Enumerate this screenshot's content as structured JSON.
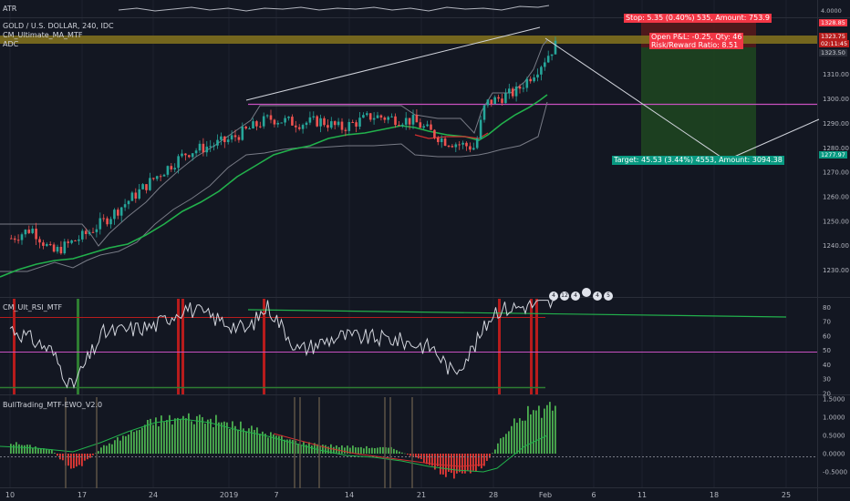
{
  "header": {
    "atr_label": "ATR",
    "symbol_title": "GOLD / U.S. DOLLAR, 240, IDC",
    "ma_label": "CM_Ultimate_MA_MTF",
    "adc_label": "ADC"
  },
  "rsi_panel": {
    "title": "CM_Ult_RSI_MTF"
  },
  "ewo_panel": {
    "title": "BullTrading_MTF-EWO_V2.0"
  },
  "position_tool": {
    "stop_text": "Stop: 5.35 (0.40%) 535, Amount: 753.9",
    "open_pl_text": "Open P&L: -0.25, Qty: 46",
    "risk_reward_text": "Risk/Reward Ratio: 8.51",
    "target_text": "Target: 45.53 (3.44%) 4553, Amount: 3094.38"
  },
  "price_labels": {
    "stop_price": "1328.85",
    "last_price": "1323.75",
    "countdown": "02:11:45",
    "entry_price": "1323.50",
    "target_price": "1277.97"
  },
  "atr_scale_label": "4.0000",
  "events": [
    "4",
    "12",
    "4",
    "",
    "4",
    "5"
  ],
  "colors": {
    "background": "#131722",
    "up_candle": "#26a69a",
    "down_candle": "#ef5350",
    "ma_green": "#22b14c",
    "channel_gray": "#787b86",
    "magenta_level": "#c850c0",
    "resistance_band": "#7f6f1e",
    "profit_zone": "#1e4620",
    "loss_zone": "#5b1a1a",
    "target_badge": "#089981",
    "stop_badge": "#f23645"
  },
  "chart_data": [
    {
      "type": "candlestick",
      "title": "GOLD / U.S. DOLLAR, 240, IDC",
      "x_tick_labels": [
        "10",
        "17",
        "24",
        "2019",
        "7",
        "14",
        "21",
        "28",
        "Feb",
        "6",
        "11",
        "18",
        "25"
      ],
      "y_ticks": [
        1230,
        1240,
        1250,
        1260,
        1270,
        1280,
        1290,
        1300,
        1310
      ],
      "ylim": [
        1222,
        1330
      ],
      "price_path_points": [
        {
          "date": "Dec 10",
          "price": 1243
        },
        {
          "date": "Dec 12",
          "price": 1247
        },
        {
          "date": "Dec 14",
          "price": 1237
        },
        {
          "date": "Dec 17",
          "price": 1244
        },
        {
          "date": "Dec 19",
          "price": 1250
        },
        {
          "date": "Dec 21",
          "price": 1257
        },
        {
          "date": "Dec 24",
          "price": 1268
        },
        {
          "date": "Dec 27",
          "price": 1278
        },
        {
          "date": "Dec 31",
          "price": 1283
        },
        {
          "date": "Jan 4",
          "price": 1292
        },
        {
          "date": "Jan 7",
          "price": 1290
        },
        {
          "date": "Jan 9",
          "price": 1291
        },
        {
          "date": "Jan 11",
          "price": 1288
        },
        {
          "date": "Jan 14",
          "price": 1293
        },
        {
          "date": "Jan 16",
          "price": 1292
        },
        {
          "date": "Jan 18",
          "price": 1291
        },
        {
          "date": "Jan 21",
          "price": 1283
        },
        {
          "date": "Jan 24",
          "price": 1280
        },
        {
          "date": "Jan 25",
          "price": 1298
        },
        {
          "date": "Jan 28",
          "price": 1303
        },
        {
          "date": "Jan 30",
          "price": 1312
        },
        {
          "date": "Feb 1",
          "price": 1323
        }
      ],
      "moving_average": [
        {
          "date": "Dec 10",
          "value": 1226
        },
        {
          "date": "Dec 17",
          "value": 1236
        },
        {
          "date": "Dec 24",
          "value": 1255
        },
        {
          "date": "Jan 2",
          "value": 1272
        },
        {
          "date": "Jan 9",
          "value": 1283
        },
        {
          "date": "Jan 16",
          "value": 1287
        },
        {
          "date": "Jan 21",
          "value": 1285
        },
        {
          "date": "Jan 25",
          "value": 1284
        },
        {
          "date": "Jan 28",
          "value": 1290
        },
        {
          "date": "Feb 1",
          "value": 1301
        }
      ],
      "horizontal_levels": {
        "magenta": 1298,
        "resistance_band": [
          1322.5,
          1325
        ]
      },
      "position": {
        "entry": 1323.5,
        "stop": 1328.85,
        "target": 1277.97
      }
    },
    {
      "type": "line",
      "title": "CM_Ult_RSI_MTF",
      "y_ticks": [
        20,
        30,
        40,
        50,
        60,
        70,
        80
      ],
      "ylim": [
        20,
        86
      ],
      "levels": {
        "overbought": 76,
        "mid": 50,
        "oversold": 24
      },
      "trendline": {
        "start": 82,
        "end": 78
      },
      "rsi_points": [
        {
          "date": "Dec 10",
          "value": 66
        },
        {
          "date": "Dec 14",
          "value": 50
        },
        {
          "date": "Dec 16",
          "value": 24
        },
        {
          "date": "Dec 19",
          "value": 62
        },
        {
          "date": "Dec 24",
          "value": 67
        },
        {
          "date": "Dec 27",
          "value": 80
        },
        {
          "date": "Jan 2",
          "value": 64
        },
        {
          "date": "Jan 4",
          "value": 81
        },
        {
          "date": "Jan 7",
          "value": 50
        },
        {
          "date": "Jan 11",
          "value": 60
        },
        {
          "date": "Jan 16",
          "value": 58
        },
        {
          "date": "Jan 20",
          "value": 52
        },
        {
          "date": "Jan 22",
          "value": 34
        },
        {
          "date": "Jan 24",
          "value": 52
        },
        {
          "date": "Jan 26",
          "value": 78
        },
        {
          "date": "Jan 30",
          "value": 82
        },
        {
          "date": "Feb 1",
          "value": 83
        }
      ]
    },
    {
      "type": "bar",
      "title": "BullTrading_MTF-EWO_V2.0",
      "y_ticks": [
        -0.5,
        0,
        0.5,
        1,
        1.5
      ],
      "ylim": [
        -0.9,
        1.55
      ],
      "ewo_points": [
        {
          "date": "Dec 10",
          "value": 0.3
        },
        {
          "date": "Dec 14",
          "value": 0.1
        },
        {
          "date": "Dec 16",
          "value": -0.5
        },
        {
          "date": "Dec 19",
          "value": 0.2
        },
        {
          "date": "Dec 24",
          "value": 0.9
        },
        {
          "date": "Dec 28",
          "value": 1.0
        },
        {
          "date": "Jan 2",
          "value": 0.7
        },
        {
          "date": "Jan 7",
          "value": 0.3
        },
        {
          "date": "Jan 11",
          "value": 0.2
        },
        {
          "date": "Jan 16",
          "value": 0.15
        },
        {
          "date": "Jan 19",
          "value": -0.2
        },
        {
          "date": "Jan 22",
          "value": -0.7
        },
        {
          "date": "Jan 25",
          "value": -0.3
        },
        {
          "date": "Jan 28",
          "value": 1.0
        },
        {
          "date": "Feb 1",
          "value": 1.35
        }
      ]
    }
  ]
}
